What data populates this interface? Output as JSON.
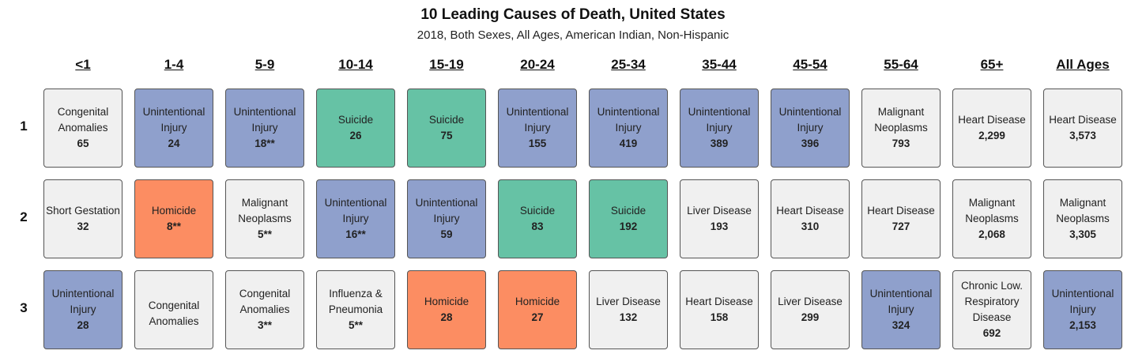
{
  "chart_data": {
    "type": "table",
    "title": "10 Leading Causes of Death, United States",
    "subtitle": "2018, Both Sexes, All Ages, American Indian, Non-Hispanic",
    "age_groups": [
      "<1",
      "1-4",
      "5-9",
      "10-14",
      "15-19",
      "20-24",
      "25-34",
      "35-44",
      "45-54",
      "55-64",
      "65+",
      "All Ages"
    ],
    "ranks": [
      "1",
      "2",
      "3"
    ],
    "category_colors": {
      "Unintentional Injury": "#8fa0cc",
      "Suicide": "#66c2a5",
      "Homicide": "#fc8d62",
      "Other": "#f0f0f0"
    },
    "cells": [
      [
        {
          "cause": "Congenital Anomalies",
          "deaths": "65",
          "category": "Other"
        },
        {
          "cause": "Unintentional Injury",
          "deaths": "24",
          "category": "Unintentional Injury"
        },
        {
          "cause": "Unintentional Injury",
          "deaths": "18**",
          "category": "Unintentional Injury"
        },
        {
          "cause": "Suicide",
          "deaths": "26",
          "category": "Suicide"
        },
        {
          "cause": "Suicide",
          "deaths": "75",
          "category": "Suicide"
        },
        {
          "cause": "Unintentional Injury",
          "deaths": "155",
          "category": "Unintentional Injury"
        },
        {
          "cause": "Unintentional Injury",
          "deaths": "419",
          "category": "Unintentional Injury"
        },
        {
          "cause": "Unintentional Injury",
          "deaths": "389",
          "category": "Unintentional Injury"
        },
        {
          "cause": "Unintentional Injury",
          "deaths": "396",
          "category": "Unintentional Injury"
        },
        {
          "cause": "Malignant Neoplasms",
          "deaths": "793",
          "category": "Other"
        },
        {
          "cause": "Heart Disease",
          "deaths": "2,299",
          "category": "Other"
        },
        {
          "cause": "Heart Disease",
          "deaths": "3,573",
          "category": "Other"
        }
      ],
      [
        {
          "cause": "Short Gestation",
          "deaths": "32",
          "category": "Other"
        },
        {
          "cause": "Homicide",
          "deaths": "8**",
          "category": "Homicide"
        },
        {
          "cause": "Malignant Neoplasms",
          "deaths": "5**",
          "category": "Other"
        },
        {
          "cause": "Unintentional Injury",
          "deaths": "16**",
          "category": "Unintentional Injury"
        },
        {
          "cause": "Unintentional Injury",
          "deaths": "59",
          "category": "Unintentional Injury"
        },
        {
          "cause": "Suicide",
          "deaths": "83",
          "category": "Suicide"
        },
        {
          "cause": "Suicide",
          "deaths": "192",
          "category": "Suicide"
        },
        {
          "cause": "Liver Disease",
          "deaths": "193",
          "category": "Other"
        },
        {
          "cause": "Heart Disease",
          "deaths": "310",
          "category": "Other"
        },
        {
          "cause": "Heart Disease",
          "deaths": "727",
          "category": "Other"
        },
        {
          "cause": "Malignant Neoplasms",
          "deaths": "2,068",
          "category": "Other"
        },
        {
          "cause": "Malignant Neoplasms",
          "deaths": "3,305",
          "category": "Other"
        }
      ],
      [
        {
          "cause": "Unintentional Injury",
          "deaths": "28",
          "category": "Unintentional Injury"
        },
        {
          "cause": "Congenital Anomalies",
          "cause2": "Influenza &",
          "deaths": "",
          "category": "Other"
        },
        {
          "cause": "Congenital Anomalies",
          "deaths": "3**",
          "category": "Other"
        },
        {
          "cause": "Influenza & Pneumonia",
          "deaths": "5**",
          "category": "Other"
        },
        {
          "cause": "Homicide",
          "deaths": "28",
          "category": "Homicide"
        },
        {
          "cause": "Homicide",
          "deaths": "27",
          "category": "Homicide"
        },
        {
          "cause": "Liver Disease",
          "deaths": "132",
          "category": "Other"
        },
        {
          "cause": "Heart Disease",
          "deaths": "158",
          "category": "Other"
        },
        {
          "cause": "Liver Disease",
          "deaths": "299",
          "category": "Other"
        },
        {
          "cause": "Unintentional Injury",
          "deaths": "324",
          "category": "Unintentional Injury"
        },
        {
          "cause": "Chronic Low. Respiratory Disease",
          "deaths": "692",
          "category": "Other"
        },
        {
          "cause": "Unintentional Injury",
          "deaths": "2,153",
          "category": "Unintentional Injury"
        }
      ]
    ]
  }
}
